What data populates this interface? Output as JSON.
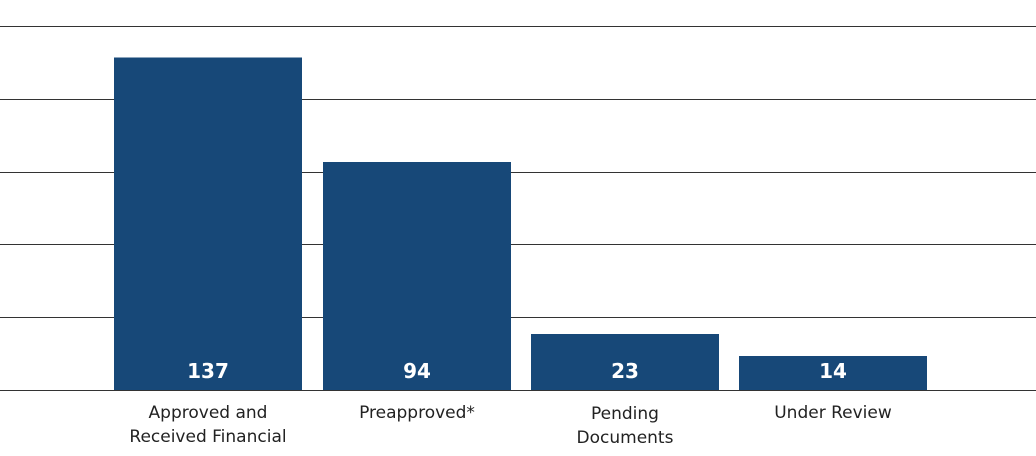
{
  "chart_data": {
    "type": "bar",
    "categories": [
      [
        "Approved and",
        "Received Financial"
      ],
      [
        "Preapproved*"
      ],
      [
        "Pending",
        "Documents"
      ],
      [
        "Under Review"
      ]
    ],
    "values": [
      137,
      94,
      23,
      14
    ],
    "data_labels": [
      "137",
      "94",
      "23",
      "14"
    ],
    "title": "",
    "xlabel": "",
    "ylabel": "",
    "ylim": [
      0,
      150
    ],
    "grid": true,
    "colors": {
      "bar": "#174878",
      "gridline": "#333333",
      "label": "#ffffff"
    }
  }
}
